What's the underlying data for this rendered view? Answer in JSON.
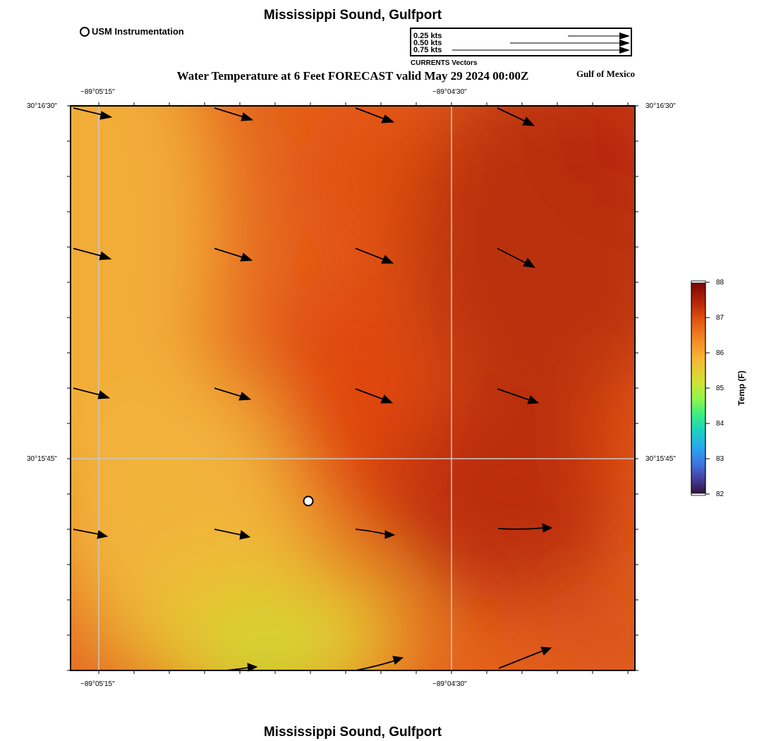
{
  "page": {
    "top_title": "Mississippi Sound, Gulfport",
    "bottom_title": "Mississippi Sound, Gulfport",
    "subtitle": "Water Temperature at 6 Feet FORECAST valid May 29 2024 00:00Z",
    "region_label": "Gulf of Mexico"
  },
  "instrument_legend": {
    "label": "USM Instrumentation"
  },
  "vector_legend": {
    "labels": [
      "0.25 kts",
      "0.50 kts",
      "0.75 kts"
    ],
    "caption": "CURRENTS Vectors"
  },
  "axes": {
    "top_lon_labels": [
      "−89°05'15\"",
      "−89°04'30\""
    ],
    "bottom_lon_labels": [
      "−89°05'15\"",
      "−89°04'30\""
    ],
    "left_lat_labels": [
      "30°16'30\"",
      "30°15'45\""
    ],
    "right_lat_labels": [
      "30°16'30\"",
      "30°15'45\""
    ]
  },
  "colorbar": {
    "label": "Temp (F)",
    "ticks": [
      "88",
      "87",
      "86",
      "85",
      "84",
      "83",
      "82"
    ],
    "min": 82,
    "max": 88
  },
  "colors": {
    "warm_yellow": "#f0ac37",
    "orange": "#e8641a",
    "deep_orange": "#de4a0c",
    "dark_red": "#b82a0a",
    "lime": "#c8d830"
  }
}
